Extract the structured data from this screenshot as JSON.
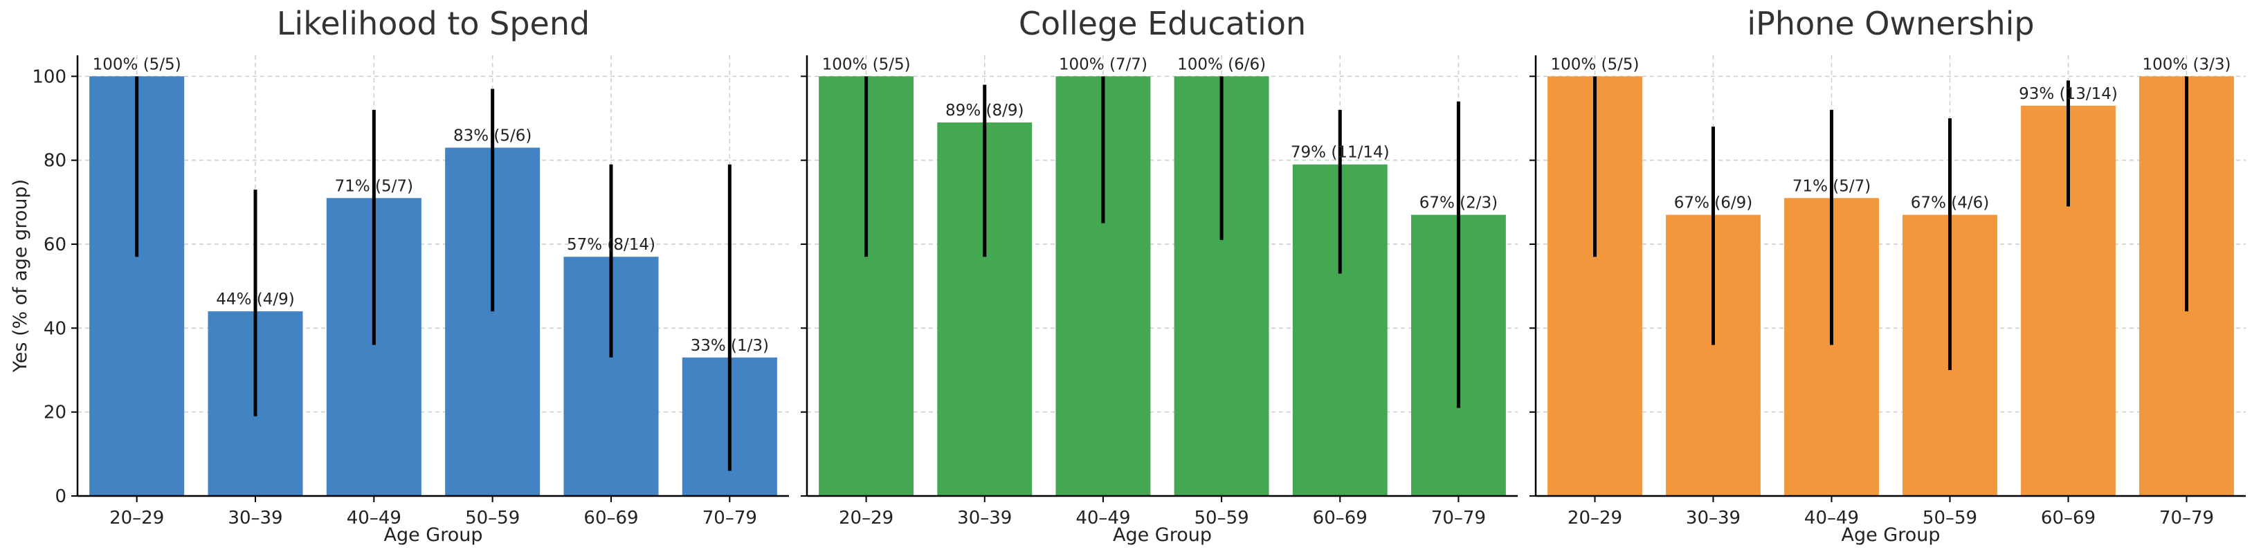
{
  "chart_data": [
    {
      "type": "bar",
      "title": "Likelihood to Spend",
      "xlabel": "Age Group",
      "ylabel": "Yes (% of age group)",
      "ylim": [
        0,
        105
      ],
      "yticks": [
        0,
        20,
        40,
        60,
        80,
        100
      ],
      "color": "#4283c4",
      "categories": [
        "20–29",
        "30–39",
        "40–49",
        "50–59",
        "60–69",
        "70–79"
      ],
      "values": [
        100,
        44,
        71,
        83,
        57,
        33
      ],
      "error_low": [
        57,
        19,
        36,
        44,
        33,
        6
      ],
      "error_high": [
        100,
        73,
        92,
        97,
        79,
        79
      ],
      "labels": [
        "100% (5/5)",
        "44% (4/9)",
        "71% (5/7)",
        "83% (5/6)",
        "57% (8/14)",
        "33% (1/3)"
      ]
    },
    {
      "type": "bar",
      "title": "College Education",
      "xlabel": "Age Group",
      "ylabel": "",
      "ylim": [
        0,
        105
      ],
      "yticks": [
        0,
        20,
        40,
        60,
        80,
        100
      ],
      "color": "#43a851",
      "categories": [
        "20–29",
        "30–39",
        "40–49",
        "50–59",
        "60–69",
        "70–79"
      ],
      "values": [
        100,
        89,
        100,
        100,
        79,
        67
      ],
      "error_low": [
        57,
        57,
        65,
        61,
        53,
        21
      ],
      "error_high": [
        100,
        98,
        100,
        100,
        92,
        94
      ],
      "labels": [
        "100% (5/5)",
        "89% (8/9)",
        "100% (7/7)",
        "100% (6/6)",
        "79% (11/14)",
        "67% (2/3)"
      ]
    },
    {
      "type": "bar",
      "title": "iPhone Ownership",
      "xlabel": "Age Group",
      "ylabel": "",
      "ylim": [
        0,
        105
      ],
      "yticks": [
        0,
        20,
        40,
        60,
        80,
        100
      ],
      "color": "#f2973c",
      "categories": [
        "20–29",
        "30–39",
        "40–49",
        "50–59",
        "60–69",
        "70–79"
      ],
      "values": [
        100,
        67,
        71,
        67,
        93,
        100
      ],
      "error_low": [
        57,
        36,
        36,
        30,
        69,
        44
      ],
      "error_high": [
        100,
        88,
        92,
        90,
        99,
        100
      ],
      "labels": [
        "100% (5/5)",
        "67% (6/9)",
        "71% (5/7)",
        "67% (4/6)",
        "93% (13/14)",
        "100% (3/3)"
      ]
    }
  ]
}
